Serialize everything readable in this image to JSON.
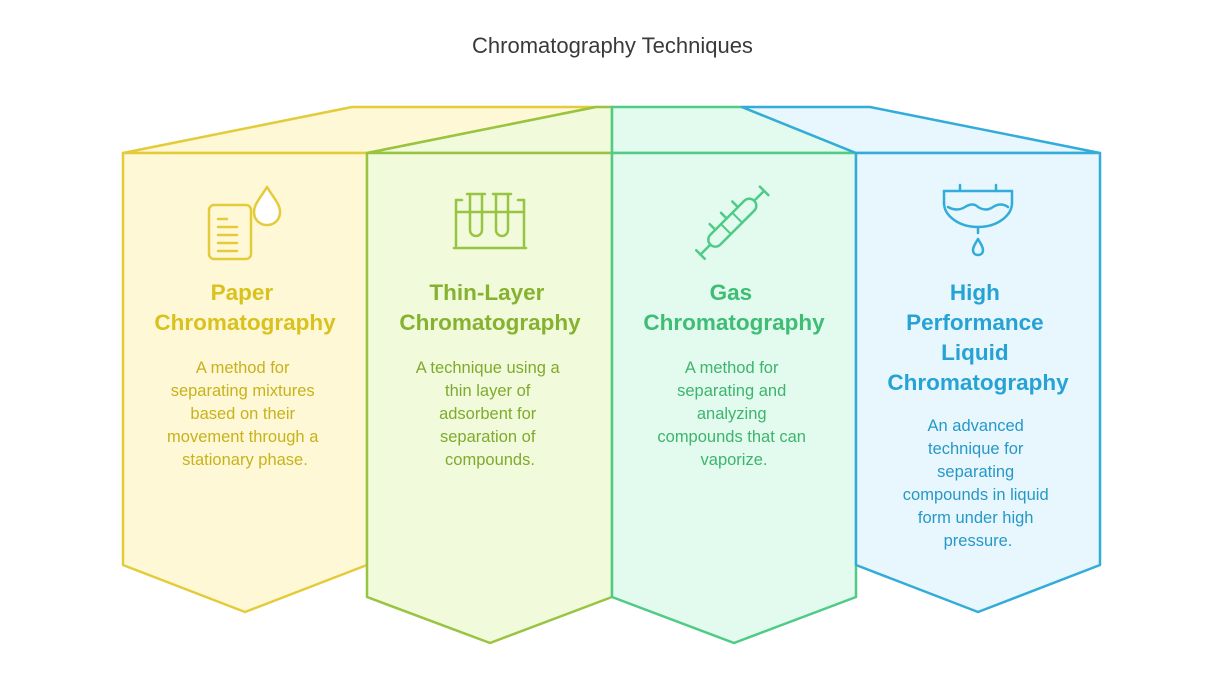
{
  "title": "Chromatography Techniques",
  "cards": [
    {
      "icon": "paper-document-droplet-icon",
      "title_lines": [
        "Paper",
        "Chromatography"
      ],
      "desc_lines": [
        "A method for",
        "separating mixtures",
        "based on their",
        "movement through a",
        "stationary phase."
      ],
      "colors": {
        "stroke": "#e3cb3a",
        "fill": "#fff8d6",
        "title": "#d9c21e",
        "text": "#c7b21d"
      }
    },
    {
      "icon": "test-tubes-rack-icon",
      "title_lines": [
        "Thin-Layer",
        "Chromatography"
      ],
      "desc_lines": [
        "A technique using a",
        "thin layer of",
        "adsorbent for",
        "separation of",
        "compounds."
      ],
      "colors": {
        "stroke": "#98c442",
        "fill": "#f1fbdc",
        "title": "#86b22f",
        "text": "#80aa2d"
      }
    },
    {
      "icon": "syringe-column-icon",
      "title_lines": [
        "Gas",
        "Chromatography"
      ],
      "desc_lines": [
        "A method for",
        "separating and",
        "analyzing",
        "compounds that can",
        "vaporize."
      ],
      "colors": {
        "stroke": "#4ecb86",
        "fill": "#e3faee",
        "title": "#3ebd74",
        "text": "#3cb56d"
      }
    },
    {
      "icon": "liquid-filter-drop-icon",
      "title_lines": [
        "High",
        "Performance",
        "Liquid",
        "Chromatography"
      ],
      "desc_lines": [
        "An advanced",
        "technique for",
        "separating",
        "compounds in liquid",
        "form under high",
        "pressure."
      ],
      "colors": {
        "stroke": "#33acd9",
        "fill": "#e8f7fd",
        "title": "#26a2d4",
        "text": "#2698c8"
      }
    }
  ]
}
